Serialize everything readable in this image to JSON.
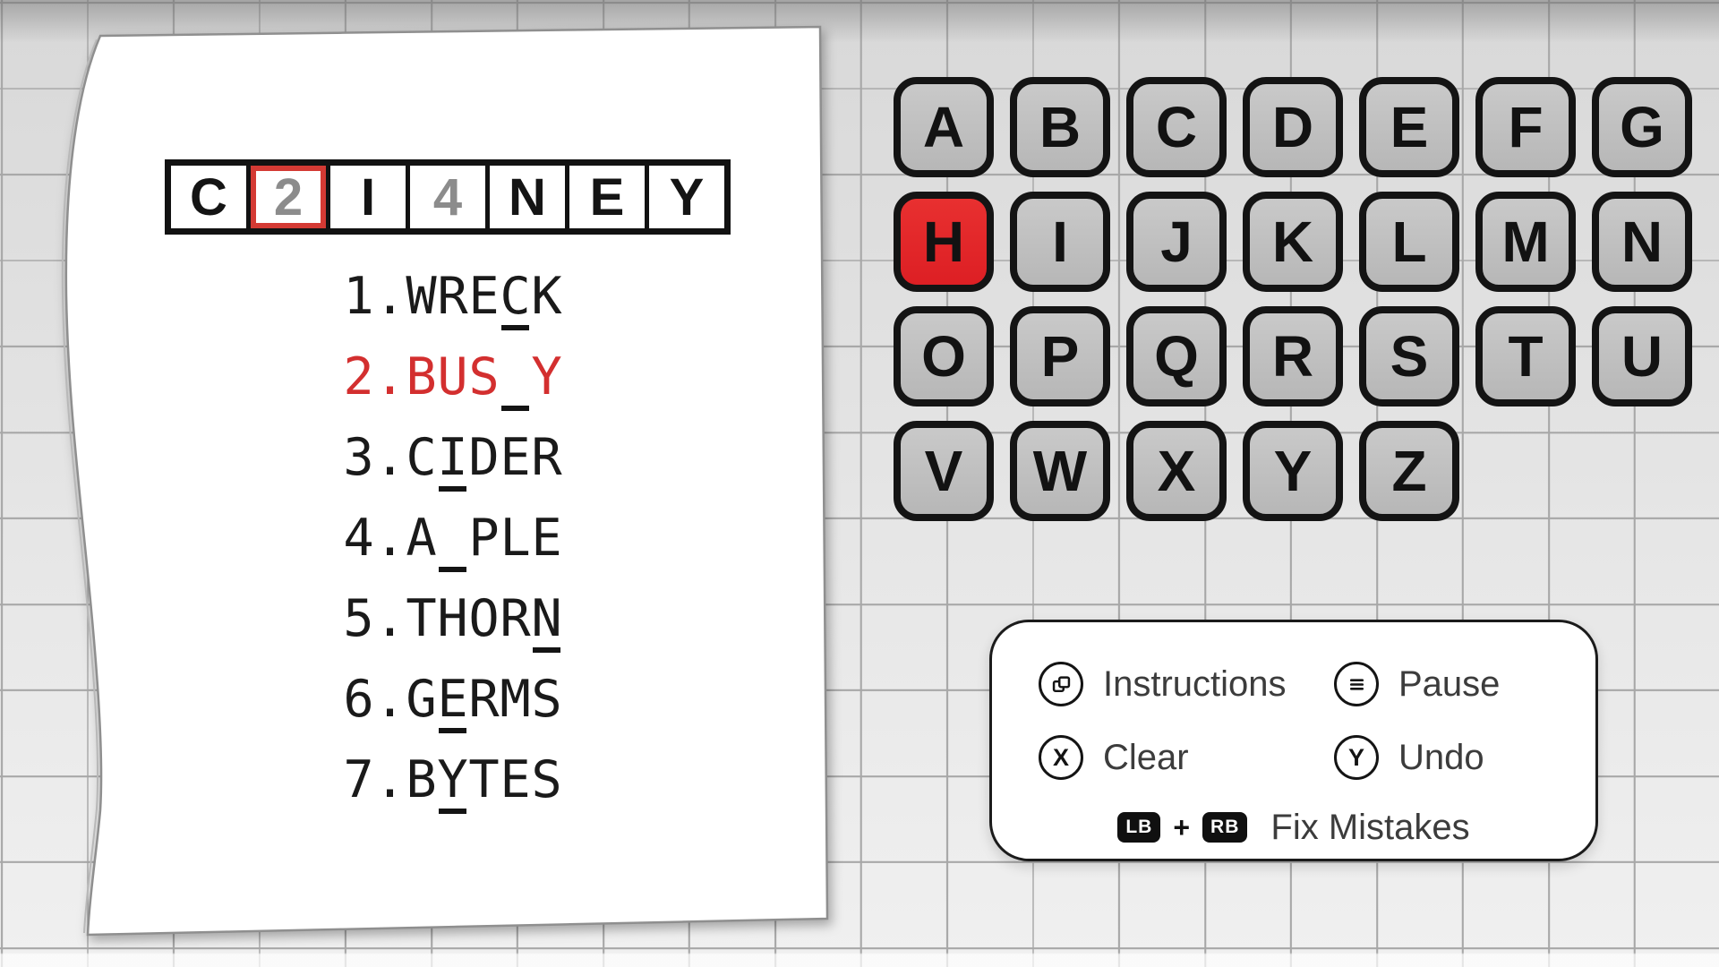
{
  "colors": {
    "clue_active_red": "#d32f2f",
    "selected_cell_border": "#d43a34",
    "selected_key_red": "#e02428",
    "key_gray": "#c0c0c0",
    "ink": "#141414"
  },
  "puzzle": {
    "cells": [
      {
        "char": "C",
        "style": "letter",
        "selected": false
      },
      {
        "char": "2",
        "style": "numeral",
        "selected": true
      },
      {
        "char": "I",
        "style": "letter",
        "selected": false
      },
      {
        "char": "4",
        "style": "numeral",
        "selected": false
      },
      {
        "char": "N",
        "style": "letter",
        "selected": false
      },
      {
        "char": "E",
        "style": "letter",
        "selected": false
      },
      {
        "char": "Y",
        "style": "letter",
        "selected": false
      }
    ]
  },
  "clues": [
    {
      "number": "1.",
      "word": "WRECK",
      "mark_index": 3,
      "active": false
    },
    {
      "number": "2.",
      "word": "BUS_Y",
      "mark_index": 3,
      "active": true
    },
    {
      "number": "3.",
      "word": "CIDER",
      "mark_index": 1,
      "active": false
    },
    {
      "number": "4.",
      "word": "A_PLE",
      "mark_index": 1,
      "active": false
    },
    {
      "number": "5.",
      "word": "THORN",
      "mark_index": 4,
      "active": false
    },
    {
      "number": "6.",
      "word": "GERMS",
      "mark_index": 1,
      "active": false
    },
    {
      "number": "7.",
      "word": "BYTES",
      "mark_index": 1,
      "active": false
    }
  ],
  "keyboard": {
    "rows": [
      [
        "A",
        "B",
        "C",
        "D",
        "E",
        "F",
        "G"
      ],
      [
        "H",
        "I",
        "J",
        "K",
        "L",
        "M",
        "N"
      ],
      [
        "O",
        "P",
        "Q",
        "R",
        "S",
        "T",
        "U"
      ],
      [
        "V",
        "W",
        "X",
        "Y",
        "Z"
      ]
    ],
    "selected": "H"
  },
  "controls": [
    {
      "icon": "view-button-icon",
      "label": "Instructions"
    },
    {
      "icon": "menu-button-icon",
      "label": "Pause"
    },
    {
      "icon": "x-button-icon",
      "label": "Clear"
    },
    {
      "icon": "y-button-icon",
      "label": "Undo"
    }
  ],
  "fix": {
    "lb": "LB",
    "plus": "+",
    "rb": "RB",
    "label": "Fix Mistakes"
  }
}
